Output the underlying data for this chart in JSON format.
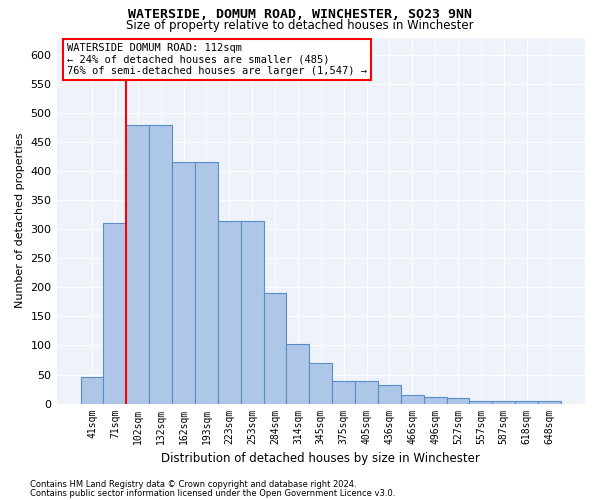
{
  "title": "WATERSIDE, DOMUM ROAD, WINCHESTER, SO23 9NN",
  "subtitle": "Size of property relative to detached houses in Winchester",
  "xlabel": "Distribution of detached houses by size in Winchester",
  "ylabel": "Number of detached properties",
  "bar_heights": [
    45,
    310,
    480,
    480,
    415,
    415,
    315,
    315,
    190,
    103,
    70,
    38,
    38,
    32,
    15,
    12,
    10,
    5,
    5,
    5,
    5
  ],
  "bar_labels": [
    "41sqm",
    "71sqm",
    "102sqm",
    "132sqm",
    "162sqm",
    "193sqm",
    "223sqm",
    "253sqm",
    "284sqm",
    "314sqm",
    "345sqm",
    "375sqm",
    "405sqm",
    "436sqm",
    "466sqm",
    "496sqm",
    "527sqm",
    "557sqm",
    "587sqm",
    "618sqm",
    "648sqm"
  ],
  "bar_color": "#aec6e8",
  "bar_edge_color": "#5b8ec4",
  "red_line_bin": 2,
  "ylim": [
    0,
    630
  ],
  "yticks": [
    0,
    50,
    100,
    150,
    200,
    250,
    300,
    350,
    400,
    450,
    500,
    550,
    600
  ],
  "annotation_title": "WATERSIDE DOMUM ROAD: 112sqm",
  "annotation_line1": "← 24% of detached houses are smaller (485)",
  "annotation_line2": "76% of semi-detached houses are larger (1,547) →",
  "footer1": "Contains HM Land Registry data © Crown copyright and database right 2024.",
  "footer2": "Contains public sector information licensed under the Open Government Licence v3.0.",
  "plot_bg_color": "#eef2fb"
}
